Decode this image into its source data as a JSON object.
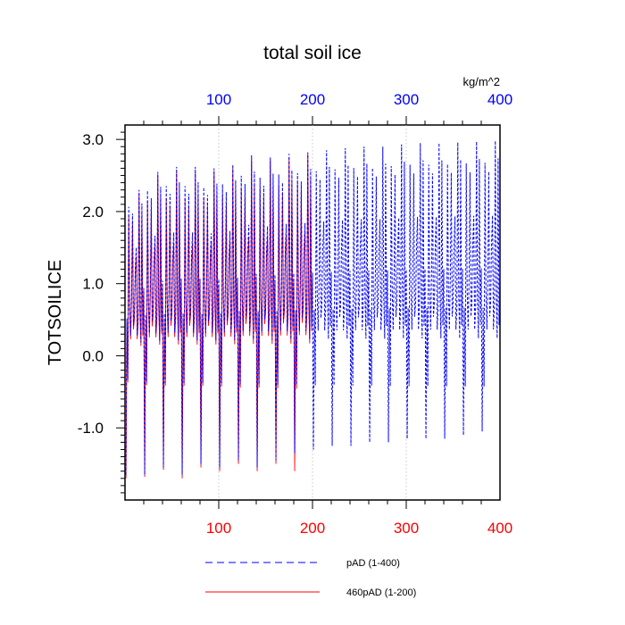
{
  "chart_data": {
    "type": "line",
    "title": "total soil ice",
    "units": "kg/m^2",
    "ylabel": "TOTSOILICE",
    "xlim": [
      0,
      400
    ],
    "ylim": [
      -2.0,
      3.2
    ],
    "x_ticks": [
      "100",
      "200",
      "300",
      "400"
    ],
    "y_ticks": [
      "3.0",
      "2.0",
      "1.0",
      "0.0",
      "-1.0"
    ],
    "colors": {
      "top_axis": "#0000ff",
      "bottom_axis": "#ff0000",
      "series_pad": "#0000ff",
      "series_460": "#ff0000"
    },
    "series": [
      {
        "name": "pAD (1-400)",
        "style": "dashed",
        "color": "#0000ff",
        "x_start": 1,
        "cycle_length": 20,
        "cycle_shape": [
          0.0,
          0.55,
          -0.35,
          2.2,
          0.75,
          0.3,
          0.9,
          2.1,
          0.45,
          0.6,
          1.3,
          1.6,
          0.3,
          0.55,
          2.45,
          0.7,
          0.2,
          2.25,
          0.35,
          1.0
        ],
        "cycle_minima": [
          -1.65,
          -1.65,
          -1.55,
          -1.65,
          -1.5,
          -1.55,
          -1.45,
          -1.55,
          -1.45,
          -1.35,
          -1.3,
          -1.25,
          -1.25,
          -1.2,
          -1.2,
          -1.15,
          -1.15,
          -1.15,
          -1.1,
          -1.05
        ],
        "cycle_peaks": [
          2.3,
          2.55,
          2.62,
          2.62,
          2.6,
          2.65,
          2.78,
          2.75,
          2.8,
          2.82,
          2.85,
          2.88,
          2.9,
          2.9,
          2.93,
          2.95,
          2.95,
          2.96,
          2.97,
          2.98
        ]
      },
      {
        "name": "460pAD (1-200)",
        "style": "solid",
        "color": "#ff0000",
        "x_start": 1,
        "x_end": 200,
        "cycle_length": 20,
        "cycle_shape": [
          0.0,
          0.5,
          -0.4,
          2.1,
          0.7,
          0.25,
          0.85,
          2.0,
          0.4,
          0.55,
          1.25,
          1.5,
          0.25,
          0.5,
          2.35,
          0.65,
          0.15,
          2.15,
          0.3,
          0.95
        ],
        "cycle_minima": [
          -1.7,
          -1.68,
          -1.58,
          -1.7,
          -1.55,
          -1.6,
          -1.5,
          -1.6,
          -1.5,
          -1.6
        ],
        "cycle_peaks": [
          2.25,
          2.5,
          2.55,
          2.55,
          2.55,
          2.6,
          2.7,
          2.7,
          2.75,
          2.8
        ]
      }
    ]
  }
}
